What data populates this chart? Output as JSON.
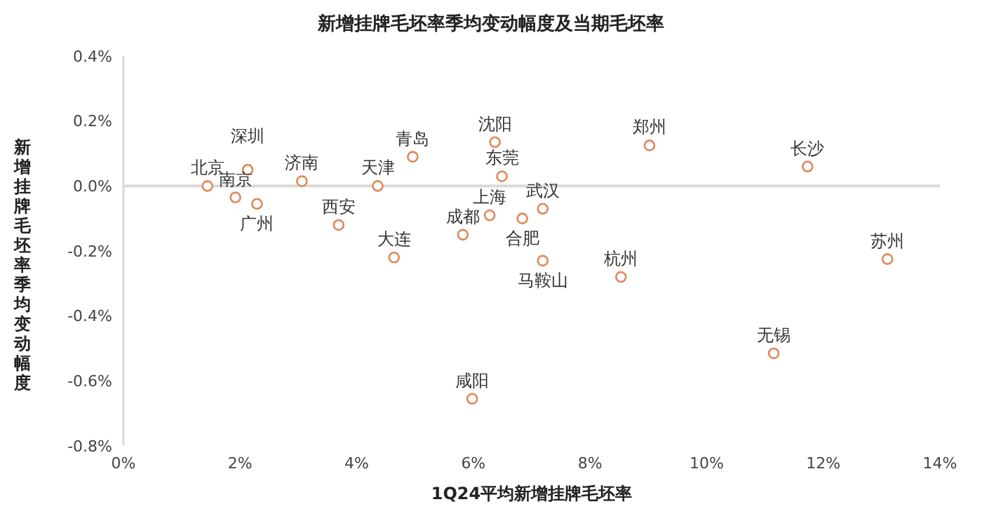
{
  "chart_data": {
    "type": "scatter",
    "title": "新增挂牌毛坯率季均变动幅度及当期毛坯率",
    "xlabel": "1Q24平均新增挂牌毛坯率",
    "ylabel": "新增挂牌毛坯率季均变动幅度",
    "x": [
      1.44,
      2.13,
      1.92,
      2.29,
      3.06,
      3.69,
      4.36,
      4.96,
      4.64,
      5.82,
      6.37,
      6.49,
      6.28,
      6.84,
      7.19,
      7.19,
      8.53,
      9.02,
      11.73,
      13.1,
      11.15,
      5.98
    ],
    "series": [
      {
        "color": "#e0875a",
        "values": [
          0.0,
          0.05,
          -0.035,
          -0.055,
          0.015,
          -0.12,
          0.0,
          0.09,
          -0.22,
          -0.15,
          0.135,
          0.03,
          -0.09,
          -0.1,
          -0.07,
          -0.23,
          -0.28,
          0.125,
          0.06,
          -0.225,
          -0.515,
          -0.655
        ]
      }
    ],
    "annotations": [
      {
        "text": "北京",
        "x": 1.44,
        "y": 0.0
      },
      {
        "text": "深圳",
        "x": 2.13,
        "y": 0.05
      },
      {
        "text": "南京",
        "x": 1.92,
        "y": -0.035
      },
      {
        "text": "广州",
        "x": 2.29,
        "y": -0.055
      },
      {
        "text": "济南",
        "x": 3.06,
        "y": 0.015
      },
      {
        "text": "西安",
        "x": 3.69,
        "y": -0.12
      },
      {
        "text": "天津",
        "x": 4.36,
        "y": 0.0
      },
      {
        "text": "青岛",
        "x": 4.96,
        "y": 0.09
      },
      {
        "text": "大连",
        "x": 4.64,
        "y": -0.22
      },
      {
        "text": "成都",
        "x": 5.82,
        "y": -0.15
      },
      {
        "text": "沈阳",
        "x": 6.37,
        "y": 0.135
      },
      {
        "text": "东莞",
        "x": 6.49,
        "y": 0.03
      },
      {
        "text": "上海",
        "x": 6.28,
        "y": -0.09
      },
      {
        "text": "合肥",
        "x": 6.84,
        "y": -0.1
      },
      {
        "text": "武汉",
        "x": 7.19,
        "y": -0.07
      },
      {
        "text": "马鞍山",
        "x": 7.19,
        "y": -0.23
      },
      {
        "text": "杭州",
        "x": 8.53,
        "y": -0.28
      },
      {
        "text": "郑州",
        "x": 9.02,
        "y": 0.125
      },
      {
        "text": "长沙",
        "x": 11.73,
        "y": 0.06
      },
      {
        "text": "苏州",
        "x": 13.1,
        "y": -0.225
      },
      {
        "text": "无锡",
        "x": 11.15,
        "y": -0.515
      },
      {
        "text": "咸阳",
        "x": 5.98,
        "y": -0.655
      }
    ],
    "xlim": [
      0,
      14
    ],
    "xticks": [
      {
        "value": 0,
        "label": "0%"
      },
      {
        "value": 2,
        "label": "2%"
      },
      {
        "value": 4,
        "label": "4%"
      },
      {
        "value": 6,
        "label": "6%"
      },
      {
        "value": 8,
        "label": "8%"
      },
      {
        "value": 10,
        "label": "10%"
      },
      {
        "value": 12,
        "label": "12%"
      },
      {
        "value": 14,
        "label": "14%"
      }
    ],
    "ylim": [
      -0.8,
      0.4
    ],
    "yticks": [
      {
        "value": -0.8,
        "label": "-0.8%"
      },
      {
        "value": -0.6,
        "label": "-0.6%"
      },
      {
        "value": -0.4,
        "label": "-0.4%"
      },
      {
        "value": -0.2,
        "label": "-0.2%"
      },
      {
        "value": 0,
        "label": "0.0%"
      },
      {
        "value": 0.2,
        "label": "0.2%"
      },
      {
        "value": 0.4,
        "label": "0.4%"
      }
    ],
    "ref_lines": [
      {
        "axis": "y",
        "value": 0,
        "color": "#d9d9d9"
      }
    ],
    "marker": "circle",
    "grid": false,
    "legend": false
  }
}
